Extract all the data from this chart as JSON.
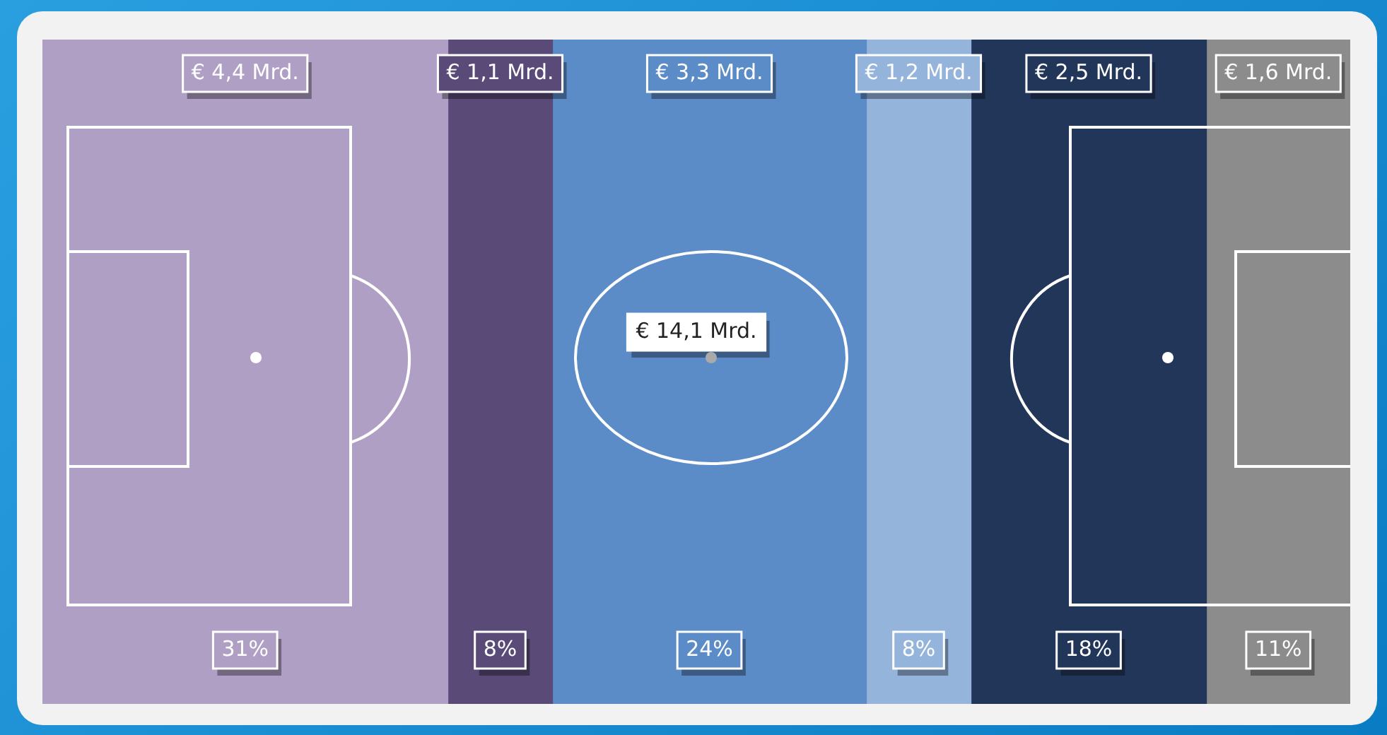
{
  "chart_data": {
    "type": "bar",
    "orientation": "horizontal",
    "stacked": true,
    "categories": [
      null
    ],
    "series": [
      {
        "color": "#b09fc4",
        "values": [
          31
        ],
        "value_labels": [
          "31%"
        ]
      },
      {
        "color": "#5a4a78",
        "values": [
          8
        ],
        "value_labels": [
          "8%"
        ]
      },
      {
        "color": "#5b8cc8",
        "values": [
          24
        ],
        "value_labels": [
          "24%"
        ]
      },
      {
        "color": "#94b4dc",
        "values": [
          8
        ],
        "value_labels": [
          "8%"
        ]
      },
      {
        "color": "#22365a",
        "values": [
          18
        ],
        "value_labels": [
          "18%"
        ]
      },
      {
        "color": "#8c8c8c",
        "values": [
          11
        ],
        "value_labels": [
          "11%"
        ]
      }
    ],
    "annotations": [
      "€ 4,4 Mrd.",
      "€ 1,1 Mrd.",
      "€ 3,3 Mrd.",
      "€ 1,2 Mrd.",
      "€ 2,5 Mrd.",
      "€ 1,6 Mrd.",
      "€ 14,1 Mrd."
    ],
    "legend": false
  }
}
